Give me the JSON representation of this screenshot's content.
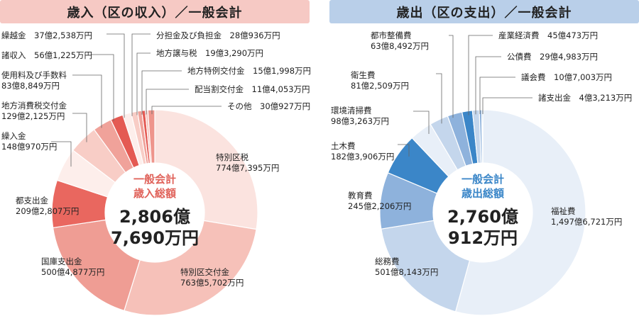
{
  "colors": {
    "revenue_title_bg": "#f6c9c4",
    "expenditure_title_bg": "#b9cfe9",
    "revenue_center_label": "#e0625a",
    "expenditure_center_label": "#3a86c8",
    "leader_line": "#666666"
  },
  "revenue": {
    "title": "歳入（区の収入）／一般会計",
    "center_label_line1": "一般会計",
    "center_label_line2": "歳入総額",
    "center_total_line1": "2,806億",
    "center_total_line2": "7,690万円"
  },
  "expenditure": {
    "title": "歳出（区の支出）／一般会計",
    "center_label_line1": "一般会計",
    "center_label_line2": "歳出総額",
    "center_total_line1": "2,760億",
    "center_total_line2": "912万円"
  },
  "chart_data": [
    {
      "type": "pie",
      "title": "歳入（区の収入）／一般会計",
      "unit": "万円",
      "slices": [
        {
          "name": "特別区税",
          "value": 7747395,
          "label": "774億7,395万円",
          "color": "#fbe3df"
        },
        {
          "name": "特別区交付金",
          "value": 7635702,
          "label": "763億5,702万円",
          "color": "#f6c1b9"
        },
        {
          "name": "国庫支出金",
          "value": 5004877,
          "label": "500億4,877万円",
          "color": "#ef9d94"
        },
        {
          "name": "都支出金",
          "value": 2092807,
          "label": "209億2,807万円",
          "color": "#e9675f"
        },
        {
          "name": "繰入金",
          "value": 1480970,
          "label": "148億970万円",
          "color": "#fdeeeb"
        },
        {
          "name": "地方消費税交付金",
          "value": 1292125,
          "label": "129億2,125万円",
          "color": "#f8cdc6"
        },
        {
          "name": "使用料及び手数料",
          "value": 838849,
          "label": "83億8,849万円",
          "color": "#f0a29a"
        },
        {
          "name": "諸収入",
          "value": 561225,
          "label": "56億1,225万円",
          "color": "#e45a53"
        },
        {
          "name": "繰越金",
          "value": 372538,
          "label": "37億2,538万円",
          "color": "#fdeeeb"
        },
        {
          "name": "分担金及び負担金",
          "value": 280936,
          "label": "28億936万円",
          "color": "#f8cdc6"
        },
        {
          "name": "地方譲与税",
          "value": 193290,
          "label": "19億3,290万円",
          "color": "#f0a29a"
        },
        {
          "name": "地方特例交付金",
          "value": 151998,
          "label": "15億1,998万円",
          "color": "#e45a53"
        },
        {
          "name": "配当割交付金",
          "value": 114053,
          "label": "11億4,053万円",
          "color": "#f6c1b9"
        },
        {
          "name": "その他",
          "value": 300927,
          "label": "30億927万円",
          "color": "#ee958c"
        }
      ]
    },
    {
      "type": "pie",
      "title": "歳出（区の支出）／一般会計",
      "unit": "万円",
      "slices": [
        {
          "name": "福祉費",
          "value": 14976721,
          "label": "1,497億6,721万円",
          "color": "#e8eff8"
        },
        {
          "name": "総務費",
          "value": 5018143,
          "label": "501億8,143万円",
          "color": "#c4d6ec"
        },
        {
          "name": "教育費",
          "value": 2452206,
          "label": "245億2,206万円",
          "color": "#8eb2dc"
        },
        {
          "name": "土木費",
          "value": 1823906,
          "label": "182億3,906万円",
          "color": "#3b86c8"
        },
        {
          "name": "環境清掃費",
          "value": 983263,
          "label": "98億3,263万円",
          "color": "#e8eff8"
        },
        {
          "name": "衛生費",
          "value": 812509,
          "label": "81億2,509万円",
          "color": "#c4d6ec"
        },
        {
          "name": "都市整備費",
          "value": 638492,
          "label": "63億8,492万円",
          "color": "#8eb2dc"
        },
        {
          "name": "産業経済費",
          "value": 450473,
          "label": "45億473万円",
          "color": "#3b86c8"
        },
        {
          "name": "公債費",
          "value": 294983,
          "label": "29億4,983万円",
          "color": "#c4d6ec"
        },
        {
          "name": "議会費",
          "value": 107003,
          "label": "10億7,003万円",
          "color": "#8eb2dc"
        },
        {
          "name": "諸支出金",
          "value": 43213,
          "label": "4億3,213万円",
          "color": "#3b86c8"
        }
      ]
    }
  ]
}
